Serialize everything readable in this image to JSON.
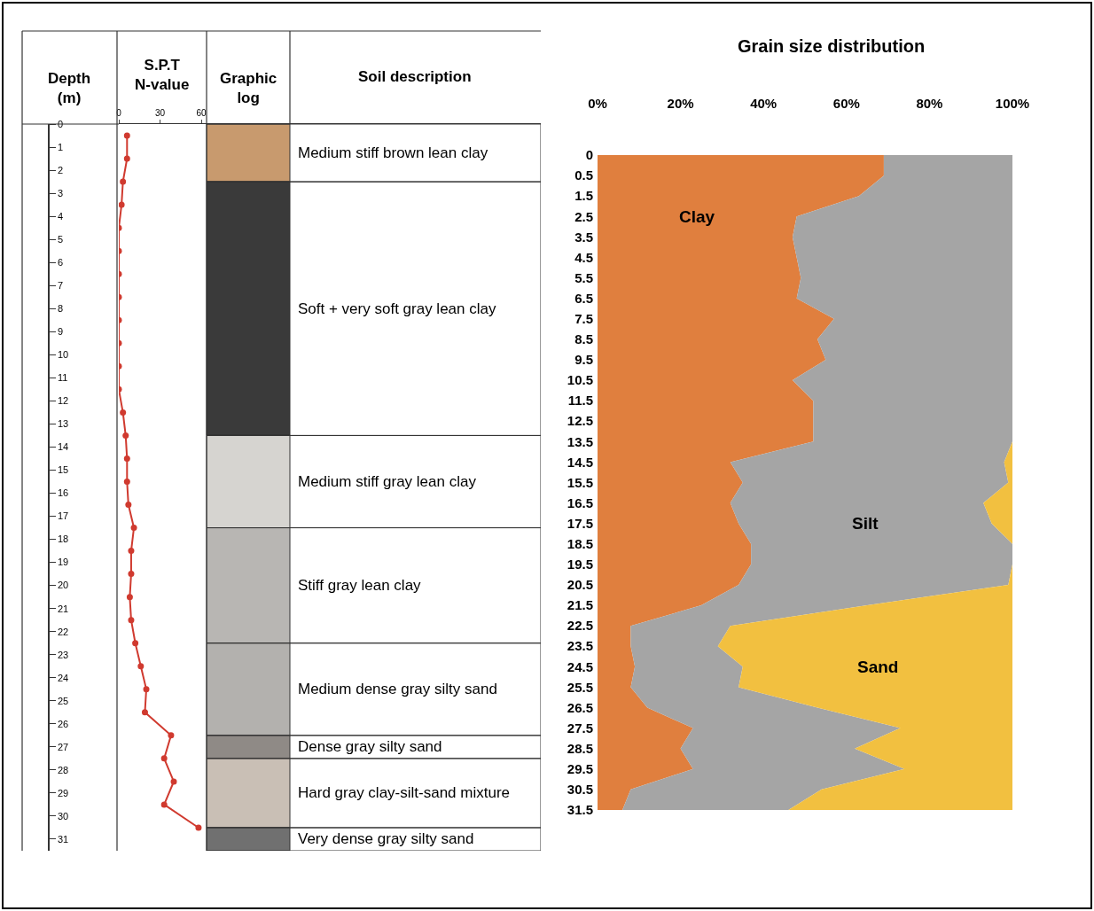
{
  "chart_data": [
    {
      "type": "line",
      "title": "S.P.T N-value",
      "ylabel": "Depth (m)",
      "orientation": "horizontal",
      "x": [
        0.5,
        1.5,
        2.5,
        3.5,
        4.5,
        5.5,
        6.5,
        7.5,
        8.5,
        9.5,
        10.5,
        11.5,
        12.5,
        13.5,
        14.5,
        15.5,
        16.5,
        17.5,
        18.5,
        19.5,
        20.5,
        21.5,
        22.5,
        23.5,
        24.5,
        25.5,
        26.5,
        27.5,
        28.5,
        29.5,
        30.5
      ],
      "series": [
        {
          "color": "#d03a2f",
          "values": [
            6,
            6,
            3,
            2,
            0,
            0,
            0,
            0,
            0,
            0,
            0,
            0,
            3,
            5,
            6,
            6,
            7,
            11,
            9,
            9,
            8,
            9,
            12,
            16,
            20,
            19,
            38,
            33,
            40,
            33,
            58
          ]
        }
      ],
      "xlim": [
        0,
        307
      ],
      "xticks": [
        0,
        30,
        60
      ],
      "ylim": [
        31.5,
        0
      ],
      "yticks": [
        0,
        1,
        2,
        3,
        4,
        5,
        6,
        7,
        8,
        9,
        10,
        11,
        12,
        13,
        14,
        15,
        16,
        17,
        18,
        19,
        20,
        21,
        22,
        23,
        24,
        25,
        26,
        27,
        28,
        29,
        30,
        31
      ],
      "marker": "circle",
      "annotations": [
        "Graphic log",
        "Soil description"
      ],
      "bands": [
        {
          "axis": "y",
          "from": 0,
          "to": 2.5,
          "color": "#c89a6e",
          "label": "Medium stiff brown lean clay"
        },
        {
          "axis": "y",
          "from": 2.5,
          "to": 13.5,
          "color": "#3a3a3a",
          "label": "Soft + very soft gray lean clay"
        },
        {
          "axis": "y",
          "from": 13.5,
          "to": 17.5,
          "color": "#d6d4d0",
          "label": "Medium stiff gray lean clay"
        },
        {
          "axis": "y",
          "from": 17.5,
          "to": 22.5,
          "color": "#b8b6b3",
          "label": "Stiff gray lean clay"
        },
        {
          "axis": "y",
          "from": 22.5,
          "to": 26.5,
          "color": "#b3b1ae",
          "label": "Medium dense gray silty sand"
        },
        {
          "axis": "y",
          "from": 26.5,
          "to": 27.5,
          "color": "#8f8a86",
          "label": "Dense gray silty sand"
        },
        {
          "axis": "y",
          "from": 27.5,
          "to": 30.5,
          "color": "#c9bfb5",
          "label": "Hard gray clay-silt-sand mixture"
        },
        {
          "axis": "y",
          "from": 30.5,
          "to": 31.5,
          "color": "#707070",
          "label": "Very dense gray silty sand"
        }
      ]
    },
    {
      "type": "area",
      "title": "Grain size distribution",
      "orientation": "horizontal",
      "stacked": true,
      "categories": [
        "0",
        "0.5",
        "1.5",
        "2.5",
        "3.5",
        "4.5",
        "5.5",
        "6.5",
        "7.5",
        "8.5",
        "9.5",
        "10.5",
        "11.5",
        "12.5",
        "13.5",
        "14.5",
        "15.5",
        "16.5",
        "17.5",
        "18.5",
        "19.5",
        "20.5",
        "21.5",
        "22.5",
        "23.5",
        "24.5",
        "25.5",
        "26.5",
        "27.5",
        "28.5",
        "29.5",
        "30.5",
        "31.5"
      ],
      "series": [
        {
          "name": "Clay",
          "color": "#e07f3e",
          "values": [
            69,
            69,
            63,
            48,
            47,
            48,
            49,
            48,
            57,
            53,
            55,
            47,
            52,
            52,
            52,
            32,
            35,
            32,
            34,
            37,
            37,
            34,
            25,
            8,
            8,
            9,
            8,
            12,
            23,
            20,
            23,
            8,
            6
          ]
        },
        {
          "name": "Silt",
          "color": "#a5a5a5",
          "values": [
            31,
            31,
            37,
            52,
            53,
            52,
            51,
            52,
            43,
            47,
            45,
            53,
            48,
            48,
            48,
            66,
            64,
            61,
            61,
            63,
            63,
            65,
            40,
            24,
            21,
            26,
            26,
            41,
            50,
            42,
            51,
            46,
            40
          ]
        },
        {
          "name": "Sand",
          "color": "#f2c040",
          "values": [
            0,
            0,
            0,
            0,
            0,
            0,
            0,
            0,
            0,
            0,
            0,
            0,
            0,
            0,
            0,
            2,
            1,
            7,
            5,
            0,
            0,
            1,
            35,
            68,
            71,
            65,
            66,
            47,
            27,
            38,
            26,
            46,
            54
          ]
        }
      ],
      "xlim": [
        0,
        100
      ],
      "xticks": [
        {
          "value": 0,
          "label": "0%"
        },
        {
          "value": 20,
          "label": "20%"
        },
        {
          "value": 40,
          "label": "40%"
        },
        {
          "value": 60,
          "label": "60%"
        },
        {
          "value": 80,
          "label": "80%"
        },
        {
          "value": 100,
          "label": "100%"
        }
      ]
    }
  ]
}
